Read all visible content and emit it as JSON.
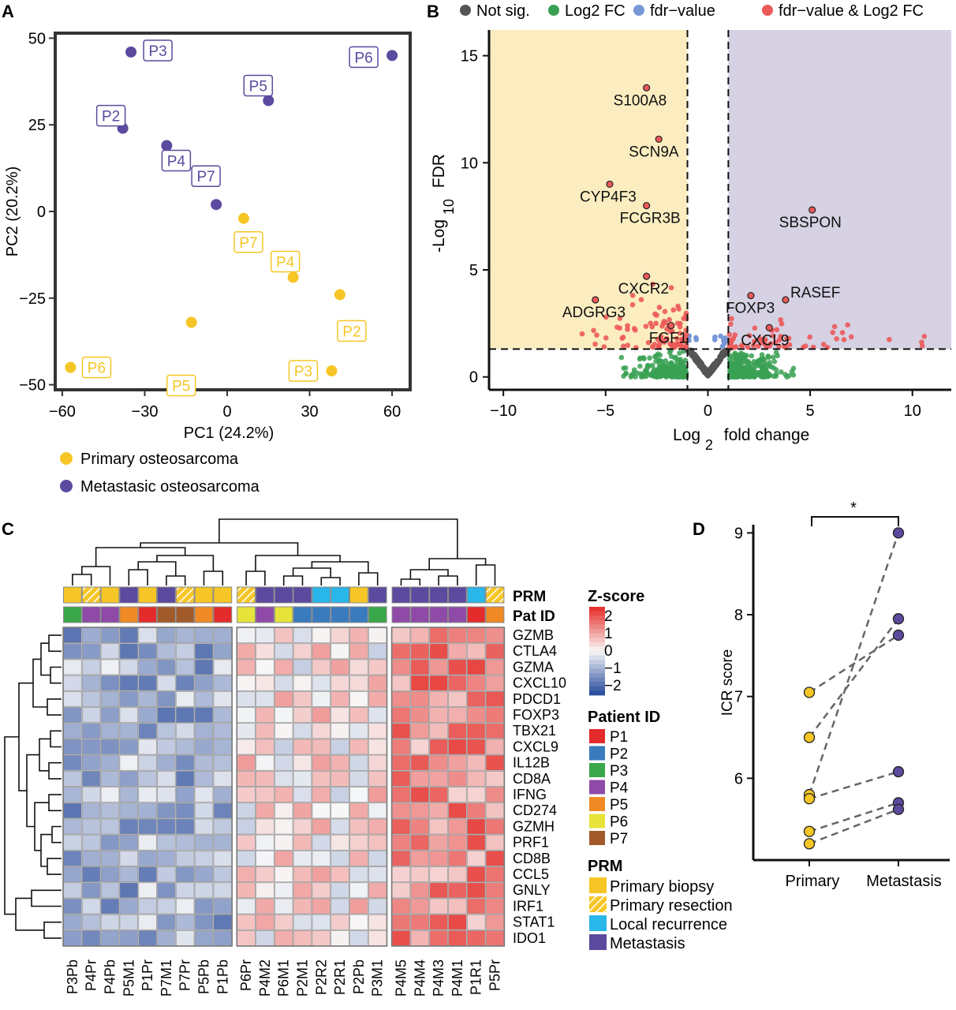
{
  "panel_letters": {
    "a": "A",
    "b": "B",
    "c": "C",
    "d": "D"
  },
  "colors": {
    "primary": "#f6c626",
    "metastatic": "#5b4a9e",
    "not_sig": "#555555",
    "log2fc": "#3aa153",
    "fdr": "#7897d6",
    "both": "#ec5959",
    "left_region": "#fbedc0",
    "right_region": "#d6d1e3",
    "heat_low": "#2d4f9e",
    "heat_mid": "#f8f8f8",
    "heat_high": "#e63430"
  },
  "chart_data": [
    {
      "panel": "A",
      "type": "scatter",
      "xlabel": "PC1 (24.2%)",
      "ylabel": "PC2 (20.2%)",
      "xlim": [
        -62,
        66
      ],
      "ylim": [
        -51,
        51
      ],
      "xticks": [
        -60,
        -30,
        0,
        30,
        60
      ],
      "yticks": [
        50,
        25,
        0,
        -25,
        -50
      ],
      "legend": [
        "Primary osteosarcoma",
        "Metastasic osteosarcoma"
      ],
      "series": [
        {
          "name": "Primary osteosarcoma",
          "points": [
            {
              "label": "P7",
              "x": 6,
              "y": -2
            },
            {
              "label": "P4",
              "x": 24,
              "y": -19
            },
            {
              "label": "P2",
              "x": 41,
              "y": -24
            },
            {
              "label": "P5",
              "x": -13,
              "y": -32
            },
            {
              "label": "P6",
              "x": -57,
              "y": -45
            },
            {
              "label": "P3",
              "x": 38,
              "y": -46
            }
          ]
        },
        {
          "name": "Metastasic osteosarcoma",
          "points": [
            {
              "label": "P3",
              "x": -35,
              "y": 46
            },
            {
              "label": "P6",
              "x": 60,
              "y": 45
            },
            {
              "label": "P2",
              "x": -38,
              "y": 24
            },
            {
              "label": "P5",
              "x": 15,
              "y": 32
            },
            {
              "label": "P4",
              "x": -22,
              "y": 19
            },
            {
              "label": "P7",
              "x": -4,
              "y": 2
            }
          ]
        }
      ]
    },
    {
      "panel": "B",
      "type": "scatter",
      "xlabel_main": "Log",
      "xlabel_sub": "2",
      "xlabel_rest": "fold change",
      "ylabel_main": "-Log",
      "ylabel_sub": "10",
      "ylabel_rest": "FDR",
      "xlim": [
        -10.7,
        11.9
      ],
      "ylim": [
        -0.6,
        16.2
      ],
      "xticks": [
        -10,
        -5,
        0,
        5,
        10
      ],
      "yticks": [
        0,
        5,
        10,
        15
      ],
      "thresholds": {
        "x": [
          -1,
          1
        ],
        "y": 1.3
      },
      "legend": [
        "Not sig.",
        "Log2 FC",
        "fdr−value",
        "fdr−value & Log2 FC"
      ],
      "labeled_genes": [
        {
          "gene": "S100A8",
          "x": -3,
          "y": 13.5
        },
        {
          "gene": "SCN9A",
          "x": -2.4,
          "y": 11.1
        },
        {
          "gene": "CYP4F3",
          "x": -4.8,
          "y": 9
        },
        {
          "gene": "FCGR3B",
          "x": -3,
          "y": 8
        },
        {
          "gene": "SBSPON",
          "x": 5.1,
          "y": 7.8
        },
        {
          "gene": "CXCR2",
          "x": -3,
          "y": 4.7
        },
        {
          "gene": "ADGRG3",
          "x": -5.5,
          "y": 3.6
        },
        {
          "gene": "FOXP3",
          "x": 2.1,
          "y": 3.8
        },
        {
          "gene": "RASEF",
          "x": 3.8,
          "y": 3.6
        },
        {
          "gene": "FGF1",
          "x": -1.8,
          "y": 2.4
        },
        {
          "gene": "CXCL9",
          "x": 3,
          "y": 2.3
        }
      ]
    },
    {
      "panel": "C",
      "type": "heatmap",
      "columns": [
        "P3Pb",
        "P4Pr",
        "P4Pb",
        "P5M1",
        "P1Pr",
        "P7M1",
        "P7Pr",
        "P5Pb",
        "P1Pb",
        "P6Pr",
        "P4M2",
        "P6M1",
        "P2M1",
        "P2R2",
        "P2R1",
        "P2Pb",
        "P3M1",
        "P4M5",
        "P4M4",
        "P4M3",
        "P4M1",
        "P1R1",
        "P5Pr"
      ],
      "column_groups": [
        9,
        8,
        6
      ],
      "rows": [
        "GZMB",
        "CTLA4",
        "GZMA",
        "CXCL10",
        "PDCD1",
        "FOXP3",
        "TBX21",
        "CXCL9",
        "IL12B",
        "CD8A",
        "IFNG",
        "CD274",
        "GZMH",
        "PRF1",
        "CD8B",
        "CCL5",
        "GNLY",
        "IRF1",
        "STAT1",
        "IDO1"
      ],
      "annotation_rows": [
        "PRM",
        "Pat ID"
      ],
      "prm": [
        "Primary biopsy",
        "Primary resection",
        "Primary biopsy",
        "Metastasis",
        "Primary biopsy",
        "Metastasis",
        "Primary resection",
        "Primary biopsy",
        "Primary biopsy",
        "Primary resection",
        "Metastasis",
        "Metastasis",
        "Metastasis",
        "Local recurrence",
        "Local recurrence",
        "Primary biopsy",
        "Metastasis",
        "Metastasis",
        "Metastasis",
        "Metastasis",
        "Metastasis",
        "Local recurrence",
        "Primary resection"
      ],
      "patient": [
        "P3",
        "P4",
        "P4",
        "P5",
        "P1",
        "P7",
        "P7",
        "P5",
        "P1",
        "P6",
        "P4",
        "P6",
        "P2",
        "P2",
        "P2",
        "P2",
        "P3",
        "P4",
        "P4",
        "P4",
        "P4",
        "P1",
        "P5"
      ],
      "zscore_title": "Z-score",
      "zscore_ticks": [
        2,
        1,
        0,
        -1,
        -2
      ],
      "patient_legend_title": "Patient ID",
      "patient_legend": [
        {
          "label": "P1",
          "color": "#e32b2b"
        },
        {
          "label": "P2",
          "color": "#3a7bbd"
        },
        {
          "label": "P3",
          "color": "#3aa84a"
        },
        {
          "label": "P4",
          "color": "#8e4aa6"
        },
        {
          "label": "P5",
          "color": "#f08a24"
        },
        {
          "label": "P6",
          "color": "#e6e43a"
        },
        {
          "label": "P7",
          "color": "#a25a2a"
        }
      ],
      "prm_legend_title": "PRM",
      "prm_legend": [
        {
          "label": "Primary biopsy",
          "color": "#f6c626",
          "hatched": false
        },
        {
          "label": "Primary resection",
          "color": "#f6c626",
          "hatched": true
        },
        {
          "label": "Local recurrence",
          "color": "#29b6e8",
          "hatched": false
        },
        {
          "label": "Metastasis",
          "color": "#5b4a9e",
          "hatched": false
        }
      ]
    },
    {
      "panel": "D",
      "type": "scatter",
      "ylabel": "ICR score",
      "categories": [
        "Primary",
        "Metastasis"
      ],
      "ylim": [
        5.0,
        9.1
      ],
      "yticks": [
        6,
        7,
        8,
        9
      ],
      "significance": "*",
      "pairs": [
        {
          "primary": 7.05,
          "metastasis": 7.75
        },
        {
          "primary": 6.5,
          "metastasis": 7.95
        },
        {
          "primary": 5.8,
          "metastasis": 9.0
        },
        {
          "primary": 5.75,
          "metastasis": 6.08
        },
        {
          "primary": 5.35,
          "metastasis": 5.7
        },
        {
          "primary": 5.2,
          "metastasis": 5.62
        }
      ]
    }
  ]
}
